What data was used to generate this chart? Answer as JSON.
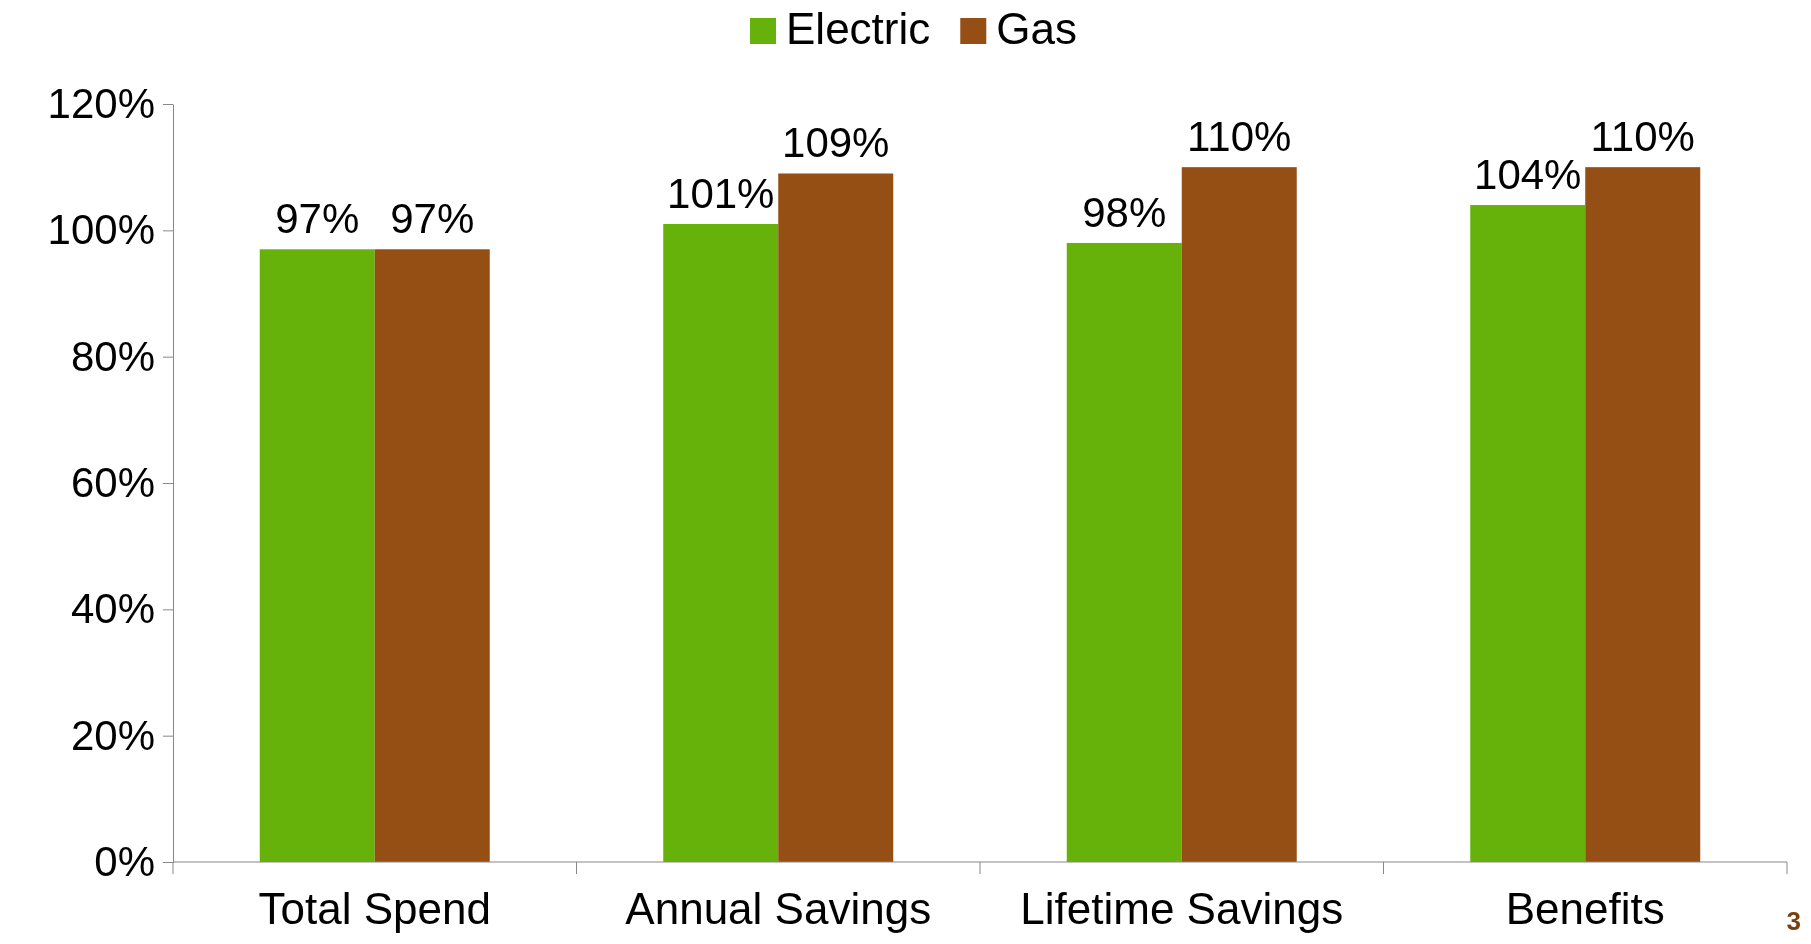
{
  "chart_data": {
    "type": "bar",
    "categories": [
      "Total Spend",
      "Annual Savings",
      "Lifetime Savings",
      "Benefits"
    ],
    "series": [
      {
        "name": "Electric",
        "color": "#66b10a",
        "values": [
          97,
          101,
          98,
          104
        ]
      },
      {
        "name": "Gas",
        "color": "#954e14",
        "values": [
          97,
          109,
          110,
          110
        ]
      }
    ],
    "ylim": [
      0,
      120
    ],
    "yticks": [
      {
        "value": 0,
        "label": "0%"
      },
      {
        "value": 20,
        "label": "20%"
      },
      {
        "value": 40,
        "label": "40%"
      },
      {
        "value": 60,
        "label": "60%"
      },
      {
        "value": 80,
        "label": "80%"
      },
      {
        "value": 100,
        "label": "100%"
      },
      {
        "value": 120,
        "label": "120%"
      }
    ],
    "value_labels": [
      [
        "97%",
        "101%",
        "98%",
        "104%"
      ],
      [
        "97%",
        "109%",
        "110%",
        "110%"
      ]
    ],
    "legend": "top",
    "grid": false,
    "annotations": [
      "3"
    ]
  }
}
